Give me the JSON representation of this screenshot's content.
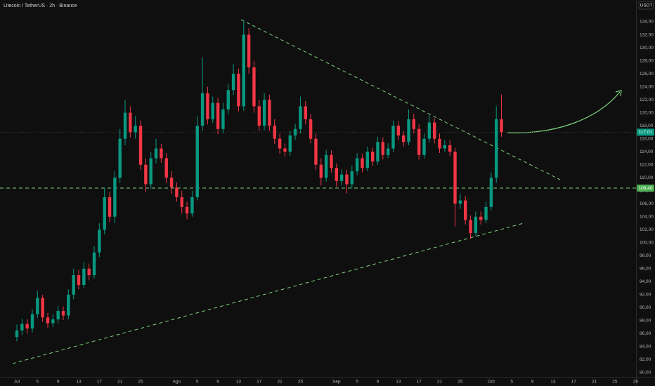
{
  "chart_data": {
    "type": "candlestick",
    "title": "Litecoin / TetherUS · 2h · Binance",
    "y_axis_label": "USDT",
    "up_color": "#089981",
    "down_color": "#f23645",
    "x": [
      0,
      1,
      2,
      3,
      4,
      5,
      6,
      7,
      8,
      9,
      10,
      11,
      12,
      13,
      14,
      15,
      16,
      17,
      18,
      19,
      20,
      21,
      22,
      23,
      24,
      25,
      26,
      27,
      28,
      29,
      30,
      31,
      32,
      33,
      34,
      35,
      36,
      37,
      38,
      39,
      40,
      41,
      42,
      43,
      44,
      45,
      46,
      47,
      48,
      49,
      50,
      51,
      52,
      53,
      54,
      55,
      56,
      57,
      58,
      59,
      60,
      61,
      62,
      63,
      64,
      65,
      66,
      67,
      68,
      69,
      70,
      71,
      72,
      73,
      74,
      75,
      76,
      77,
      78,
      79,
      80,
      81,
      82,
      83,
      84,
      85,
      86,
      87,
      88,
      89,
      90,
      91,
      92,
      93,
      94
    ],
    "open": [
      85.5,
      86.5,
      87.5,
      86.8,
      89,
      91.5,
      88.5,
      87.6,
      88.2,
      89.5,
      88.8,
      92,
      95,
      93.5,
      96,
      95,
      98.5,
      102,
      107,
      104,
      110,
      116,
      120,
      117,
      118,
      112,
      109,
      113,
      114.5,
      113,
      110,
      108.5,
      107,
      105.5,
      104.5,
      107,
      118,
      123,
      119,
      121.5,
      117.5,
      120.5,
      123.5,
      126,
      121,
      132,
      127,
      121,
      118,
      122,
      118,
      116,
      114.5,
      114,
      116.5,
      117.5,
      121,
      119,
      116,
      112,
      110,
      113.5,
      111.5,
      109.5,
      110.5,
      109,
      111,
      113,
      111.5,
      114,
      112.5,
      115.5,
      113.5,
      114.5,
      118,
      116.5,
      115.5,
      119,
      117.5,
      113.5,
      116,
      118.5,
      116,
      114.5,
      115,
      114,
      106,
      106.5,
      103.5,
      101.5,
      104,
      103.5,
      105.5,
      110,
      119
    ],
    "high": [
      87.4,
      88.3,
      88.2,
      89.8,
      92.6,
      92,
      89.2,
      89,
      90.3,
      90.2,
      92.8,
      96,
      95.8,
      97,
      96.8,
      99.5,
      103,
      108.5,
      107.8,
      111,
      117.5,
      122,
      121,
      119.5,
      118.8,
      113,
      114,
      116,
      115.2,
      113.8,
      111,
      109.3,
      108,
      106.3,
      108,
      119.5,
      128.5,
      124,
      122.5,
      122.3,
      121.5,
      124.5,
      127.5,
      126.8,
      134.2,
      133,
      128,
      122,
      123,
      122.8,
      119,
      116.8,
      115.3,
      117.2,
      118.3,
      122.5,
      121.8,
      119.8,
      116.8,
      113,
      114.3,
      114.2,
      112.2,
      111.3,
      111.2,
      111.8,
      113.8,
      113.7,
      114.8,
      114.6,
      116.3,
      116.2,
      115.3,
      118.8,
      118.7,
      117.2,
      120.5,
      119.8,
      118.2,
      116.8,
      119.6,
      119.2,
      116.8,
      115.8,
      115.8,
      114.6,
      107.5,
      107.2,
      104.2,
      104.8,
      104.8,
      106.3,
      110.8,
      121,
      122.8
    ],
    "low": [
      84.8,
      85.8,
      86,
      86.2,
      88.4,
      87.8,
      86.9,
      87,
      87.6,
      88.1,
      88.2,
      91.3,
      92.8,
      93,
      94.2,
      94.5,
      97.8,
      101.3,
      103.2,
      103,
      109.2,
      115,
      116.2,
      116,
      111.2,
      107.8,
      108.3,
      112.2,
      112.3,
      109.2,
      107.5,
      106.3,
      104.5,
      103.6,
      104,
      106.5,
      117.2,
      118.2,
      118.4,
      116.7,
      116.8,
      119.8,
      122.7,
      120.2,
      120.3,
      126,
      120,
      117.2,
      117.3,
      117.2,
      115.2,
      113.7,
      113.3,
      113.4,
      115.8,
      116.8,
      118.2,
      115.3,
      111.2,
      108.8,
      109.4,
      110.8,
      108.6,
      108.8,
      107.6,
      108.4,
      110.4,
      110.8,
      111,
      111.8,
      112,
      112.8,
      113,
      113.9,
      115.8,
      114.8,
      115,
      116.8,
      112.8,
      113,
      115.4,
      115.3,
      113.8,
      114,
      113.3,
      102.5,
      105.2,
      102.8,
      100.6,
      101,
      102.8,
      103,
      105,
      109.2,
      116.3
    ],
    "close": [
      86.5,
      87.5,
      86.8,
      89,
      91.5,
      88.5,
      87.6,
      88.2,
      89.5,
      88.8,
      92,
      95,
      93.5,
      96,
      95,
      98.5,
      102,
      107,
      104,
      110,
      116,
      120,
      117,
      118,
      112,
      109,
      113,
      114.5,
      113,
      110,
      108.5,
      107,
      105.5,
      104.5,
      107,
      118,
      123,
      119,
      121.5,
      117.5,
      120.5,
      123.5,
      126,
      121,
      132,
      127,
      121,
      118,
      122,
      118,
      116,
      114.5,
      114,
      116.5,
      117.5,
      121,
      119,
      116,
      112,
      110,
      113.5,
      111.5,
      109.5,
      110.5,
      109,
      111,
      113,
      111.5,
      114,
      112.5,
      115.5,
      113.5,
      114.5,
      118,
      116.5,
      115.5,
      119,
      117.5,
      113.5,
      116,
      118.5,
      116,
      114.5,
      115,
      114,
      106,
      106.5,
      103.5,
      101.5,
      104,
      103.5,
      105.5,
      110,
      119,
      117.01
    ],
    "xlim": [
      -3.27,
      120.1
    ],
    "xticks": [
      {
        "value": 0,
        "label": "Jul"
      },
      {
        "value": 4,
        "label": "5"
      },
      {
        "value": 8,
        "label": "9"
      },
      {
        "value": 12,
        "label": "13"
      },
      {
        "value": 16,
        "label": "17"
      },
      {
        "value": 20,
        "label": "21"
      },
      {
        "value": 24,
        "label": "25"
      },
      {
        "value": 31,
        "label": "Ago"
      },
      {
        "value": 35,
        "label": "5"
      },
      {
        "value": 39,
        "label": "9"
      },
      {
        "value": 43,
        "label": "13"
      },
      {
        "value": 47,
        "label": "17"
      },
      {
        "value": 51,
        "label": "21"
      },
      {
        "value": 55,
        "label": "25"
      },
      {
        "value": 62,
        "label": "Sep"
      },
      {
        "value": 66,
        "label": "5"
      },
      {
        "value": 70,
        "label": "9"
      },
      {
        "value": 74,
        "label": "13"
      },
      {
        "value": 78,
        "label": "17"
      },
      {
        "value": 82,
        "label": "21"
      },
      {
        "value": 86,
        "label": "25"
      },
      {
        "value": 92,
        "label": "Oct"
      },
      {
        "value": 96,
        "label": "5"
      },
      {
        "value": 100,
        "label": "9"
      },
      {
        "value": 104,
        "label": "13"
      },
      {
        "value": 108,
        "label": "17"
      },
      {
        "value": 112,
        "label": "21"
      },
      {
        "value": 116,
        "label": "25"
      },
      {
        "value": 120,
        "label": "29"
      }
    ],
    "ylim": [
      79.35,
      137.35
    ],
    "yticks": [
      {
        "value": 80,
        "label": "80,00"
      },
      {
        "value": 82,
        "label": "82,00"
      },
      {
        "value": 84,
        "label": "84,00"
      },
      {
        "value": 86,
        "label": "86,00"
      },
      {
        "value": 88,
        "label": "88,00"
      },
      {
        "value": 90,
        "label": "90,00"
      },
      {
        "value": 92,
        "label": "92,00"
      },
      {
        "value": 94,
        "label": "94,00"
      },
      {
        "value": 96,
        "label": "96,00"
      },
      {
        "value": 98,
        "label": "98,00"
      },
      {
        "value": 100,
        "label": "100,00"
      },
      {
        "value": 102,
        "label": "102,00"
      },
      {
        "value": 104,
        "label": "104,00"
      },
      {
        "value": 106,
        "label": "106,00"
      },
      {
        "value": 108,
        "label": "108,00"
      },
      {
        "value": 110,
        "label": "110,00"
      },
      {
        "value": 112,
        "label": "112,00"
      },
      {
        "value": 114,
        "label": "114,00"
      },
      {
        "value": 116,
        "label": "116,00"
      },
      {
        "value": 118,
        "label": "118,00"
      },
      {
        "value": 120,
        "label": "120,00"
      },
      {
        "value": 122,
        "label": "122,00"
      },
      {
        "value": 124,
        "label": "124,00"
      },
      {
        "value": 126,
        "label": "126,00"
      },
      {
        "value": 128,
        "label": "128,00"
      },
      {
        "value": 130,
        "label": "130,00"
      },
      {
        "value": 132,
        "label": "132,00"
      },
      {
        "value": 134,
        "label": "134,00"
      }
    ],
    "grid": false,
    "last_price": {
      "value": 117.01,
      "label": "117,01"
    },
    "level": {
      "value": 108.4,
      "label": "108,40"
    }
  }
}
